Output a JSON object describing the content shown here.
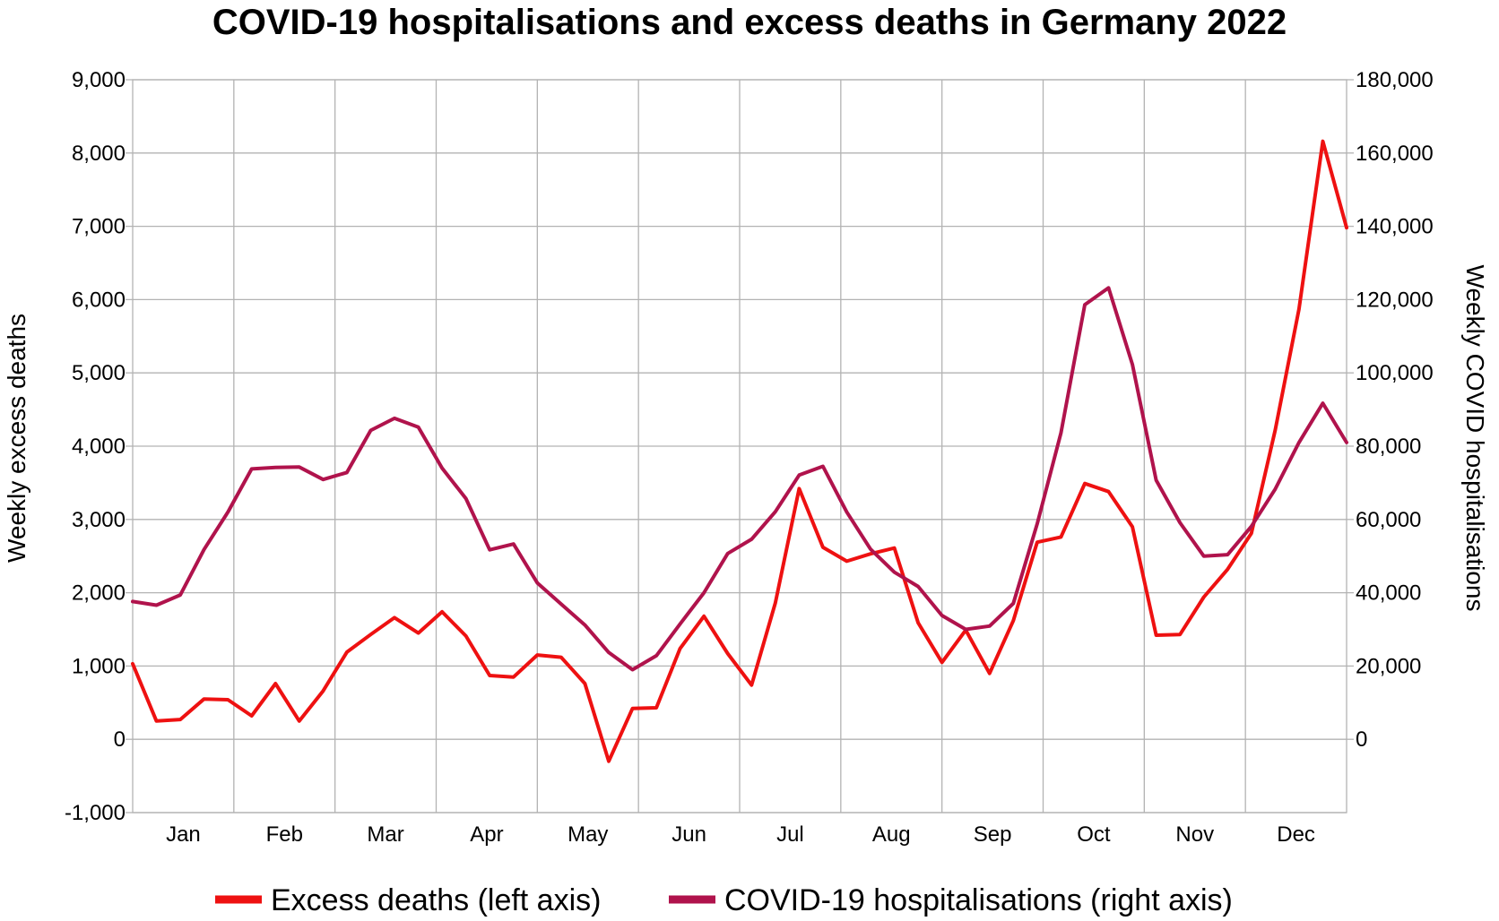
{
  "chart_data": {
    "type": "line",
    "title": "COVID-19 hospitalisations and excess deaths in Germany 2022",
    "ylabel_left": "Weekly excess deaths",
    "ylabel_right": "Weekly COVID hospitalisations",
    "xlabel": "",
    "y_left_lim": [
      -1000,
      9000
    ],
    "y_right_lim": [
      -20000,
      180000
    ],
    "y_left_ticks": [
      "-1,000",
      "0",
      "1,000",
      "2,000",
      "3,000",
      "4,000",
      "5,000",
      "6,000",
      "7,000",
      "8,000",
      "9,000"
    ],
    "y_right_ticks": [
      "0",
      "20,000",
      "40,000",
      "60,000",
      "80,000",
      "100,000",
      "120,000",
      "140,000",
      "160,000",
      "180,000"
    ],
    "months": [
      "Jan",
      "Feb",
      "Mar",
      "Apr",
      "May",
      "Jun",
      "Jul",
      "Aug",
      "Sep",
      "Oct",
      "Nov",
      "Dec"
    ],
    "grid": true,
    "legend_position": "bottom",
    "series": [
      {
        "name": "Excess deaths (left axis)",
        "axis": "left",
        "color": "#ee1111",
        "values": [
          1030,
          250,
          270,
          550,
          540,
          320,
          760,
          250,
          660,
          1190,
          1430,
          1660,
          1450,
          1740,
          1410,
          870,
          850,
          1150,
          1120,
          760,
          -300,
          420,
          430,
          1240,
          1680,
          1170,
          740,
          1860,
          3420,
          2620,
          2430,
          2530,
          2610,
          1590,
          1050,
          1490,
          900,
          1620,
          2690,
          2760,
          3490,
          3380,
          2900,
          1420,
          1430,
          1940,
          2320,
          2810,
          4220,
          5870,
          8160,
          6980
        ]
      },
      {
        "name": "COVID-19 hospitalisations (right axis)",
        "axis": "right",
        "color": "#b0134c",
        "values": [
          37600,
          36600,
          39400,
          51800,
          62000,
          73800,
          74200,
          74300,
          70900,
          72800,
          84300,
          87600,
          85200,
          74000,
          65700,
          51700,
          53300,
          42700,
          36900,
          31200,
          23700,
          19000,
          22800,
          31500,
          40000,
          50700,
          54600,
          62100,
          72100,
          74500,
          62000,
          51900,
          45600,
          41700,
          33800,
          30000,
          30900,
          37100,
          58800,
          83600,
          118600,
          123200,
          102300,
          70700,
          59100,
          50000,
          50400,
          58100,
          68300,
          81000,
          91700,
          81000
        ]
      }
    ]
  }
}
